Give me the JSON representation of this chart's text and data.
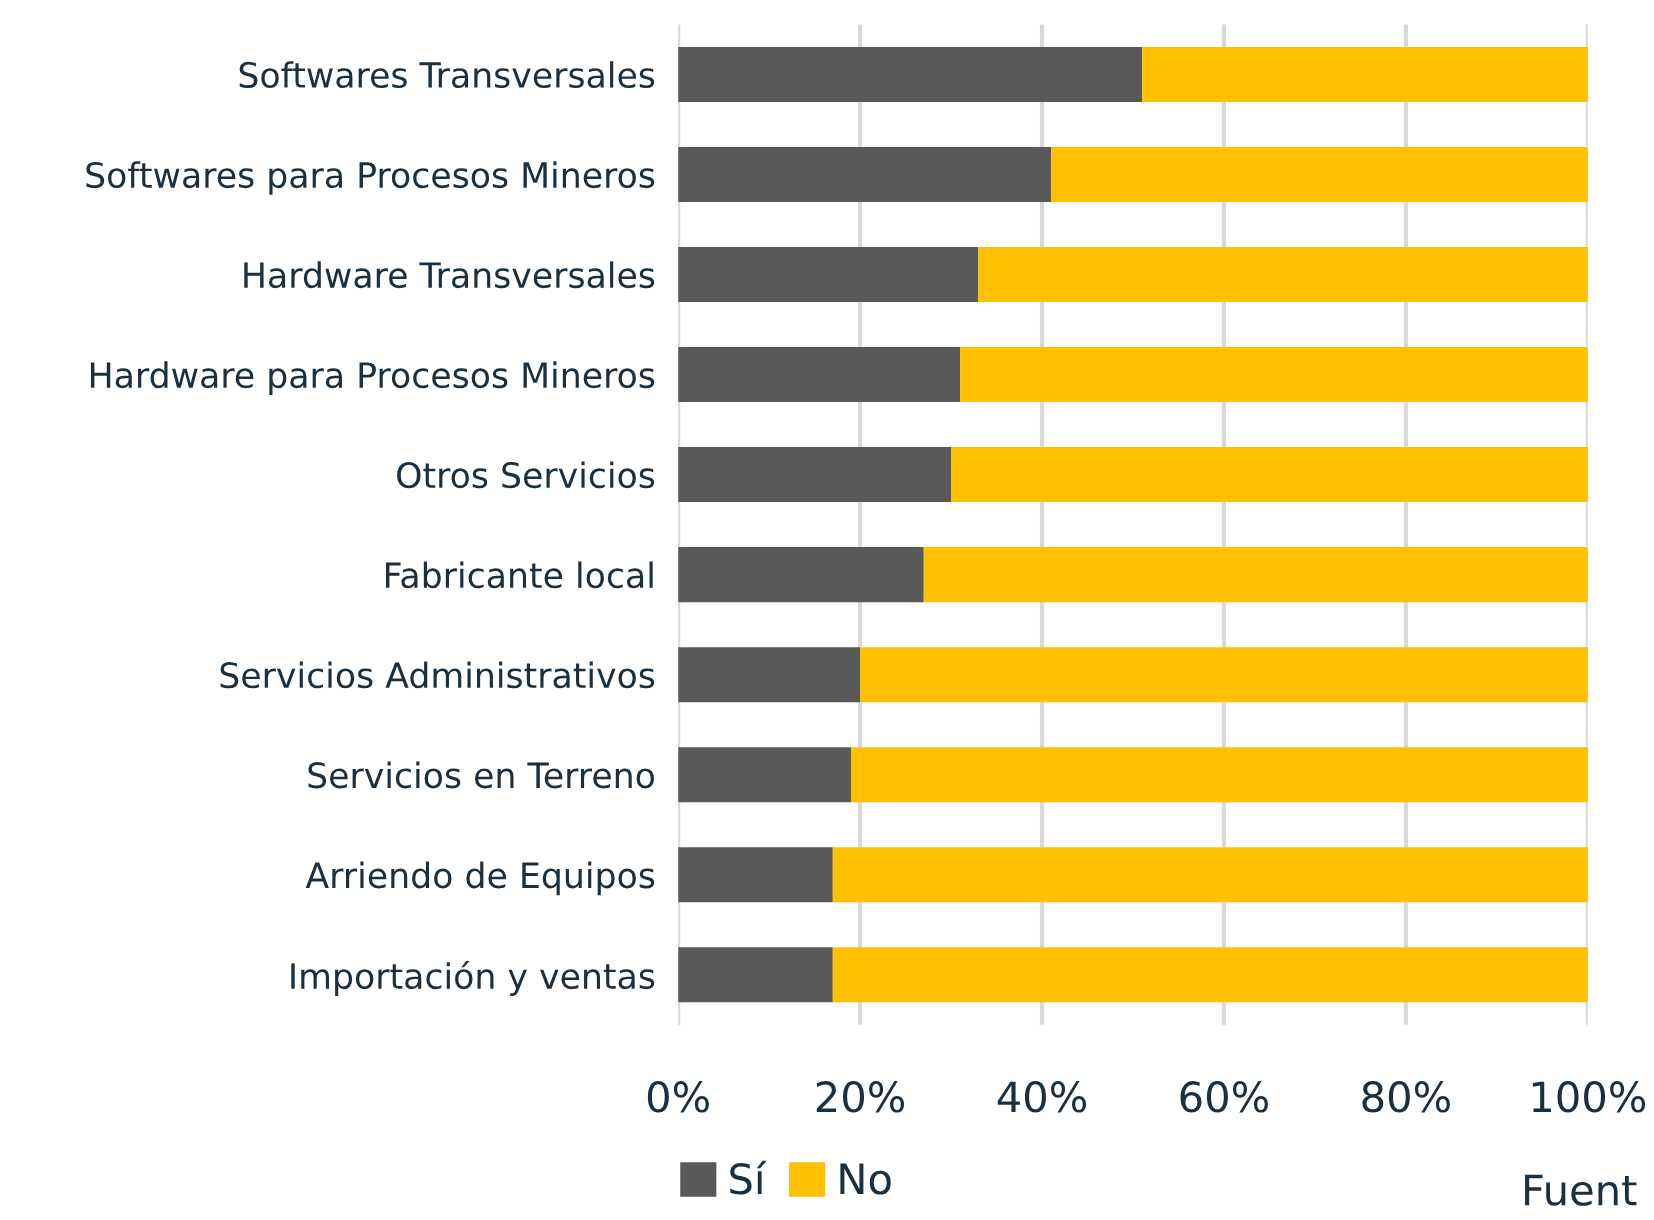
{
  "chart_data": {
    "type": "bar",
    "orientation": "horizontal",
    "stacked": true,
    "categories": [
      "Softwares Transversales",
      "Softwares para Procesos Mineros",
      "Hardware Transversales",
      "Hardware para Procesos Mineros",
      "Otros Servicios",
      "Fabricante local",
      "Servicios Administrativos",
      "Servicios en Terreno",
      "Arriendo de Equipos",
      "Importación y ventas"
    ],
    "series": [
      {
        "name": "Sí",
        "color": "#595959",
        "values": [
          51,
          41,
          33,
          31,
          30,
          27,
          20,
          19,
          17,
          17
        ]
      },
      {
        "name": "No",
        "color": "#ffc000",
        "values": [
          49,
          59,
          67,
          69,
          70,
          73,
          80,
          81,
          83,
          83
        ]
      }
    ],
    "xlim": [
      0,
      100
    ],
    "xticks": [
      {
        "value": 0,
        "label": "0%"
      },
      {
        "value": 20,
        "label": "20%"
      },
      {
        "value": 40,
        "label": "40%"
      },
      {
        "value": 60,
        "label": "60%"
      },
      {
        "value": 80,
        "label": "80%"
      },
      {
        "value": 100,
        "label": "100%"
      }
    ],
    "grid": "x",
    "legend": "bottom",
    "annotations": [
      "Fuent"
    ]
  }
}
